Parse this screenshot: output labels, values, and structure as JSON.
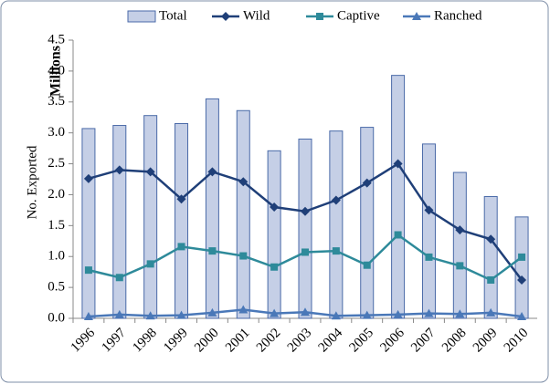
{
  "chart_data": {
    "type": "bar",
    "y_label": "No. Exported",
    "y_unit_label": "Millions",
    "categories": [
      "1996",
      "1997",
      "1998",
      "1999",
      "2000",
      "2001",
      "2002",
      "2003",
      "2004",
      "2005",
      "2006",
      "2007",
      "2008",
      "2009",
      "2010"
    ],
    "series": [
      {
        "name": "Total",
        "type": "bar",
        "color": "#c5cfe6",
        "edge_color": "#4a6aa8",
        "values": [
          3.07,
          3.12,
          3.28,
          3.15,
          3.55,
          3.36,
          2.71,
          2.9,
          3.03,
          3.09,
          3.93,
          2.82,
          2.36,
          1.97,
          1.64
        ]
      },
      {
        "name": "Wild",
        "type": "line",
        "marker": "diamond",
        "color": "#1f3f78",
        "values": [
          2.26,
          2.4,
          2.37,
          1.93,
          2.37,
          2.21,
          1.8,
          1.73,
          1.91,
          2.19,
          2.5,
          1.75,
          1.43,
          1.28,
          0.62
        ]
      },
      {
        "name": "Captive",
        "type": "line",
        "marker": "square",
        "color": "#2e8a9a",
        "values": [
          0.78,
          0.66,
          0.88,
          1.16,
          1.09,
          1.01,
          0.83,
          1.07,
          1.09,
          0.86,
          1.35,
          0.99,
          0.85,
          0.62,
          0.99
        ]
      },
      {
        "name": "Ranched",
        "type": "line",
        "marker": "triangle",
        "color": "#4a78b8",
        "values": [
          0.03,
          0.06,
          0.04,
          0.05,
          0.09,
          0.14,
          0.08,
          0.1,
          0.04,
          0.05,
          0.06,
          0.08,
          0.07,
          0.09,
          0.03
        ]
      }
    ],
    "ylim": [
      0,
      4.5
    ],
    "yticks": [
      {
        "value": 0,
        "label": "0.0"
      },
      {
        "value": 0.5,
        "label": "0.5"
      },
      {
        "value": 1,
        "label": "1.0"
      },
      {
        "value": 1.5,
        "label": "1.5"
      },
      {
        "value": 2,
        "label": "2.0"
      },
      {
        "value": 2.5,
        "label": "2.5"
      },
      {
        "value": 3,
        "label": "3.0"
      },
      {
        "value": 3.5,
        "label": "3.5"
      },
      {
        "value": 4,
        "label": "4.0"
      },
      {
        "value": 4.5,
        "label": "4.5"
      }
    ],
    "grid": false,
    "legend": "top"
  }
}
